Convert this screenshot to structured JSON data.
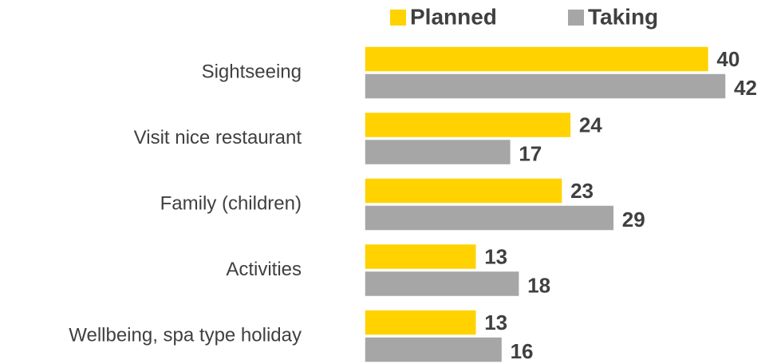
{
  "chart_data": {
    "type": "bar",
    "orientation": "horizontal",
    "categories": [
      "Sightseeing",
      "Visit nice restaurant",
      "Family (children)",
      "Activities",
      "Wellbeing, spa type holiday"
    ],
    "series": [
      {
        "name": "Planned",
        "color": "#ffd200",
        "values": [
          40,
          24,
          23,
          13,
          13
        ]
      },
      {
        "name": "Taking",
        "color": "#a6a6a6",
        "values": [
          42,
          17,
          29,
          18,
          16
        ]
      }
    ],
    "legend": "top"
  }
}
